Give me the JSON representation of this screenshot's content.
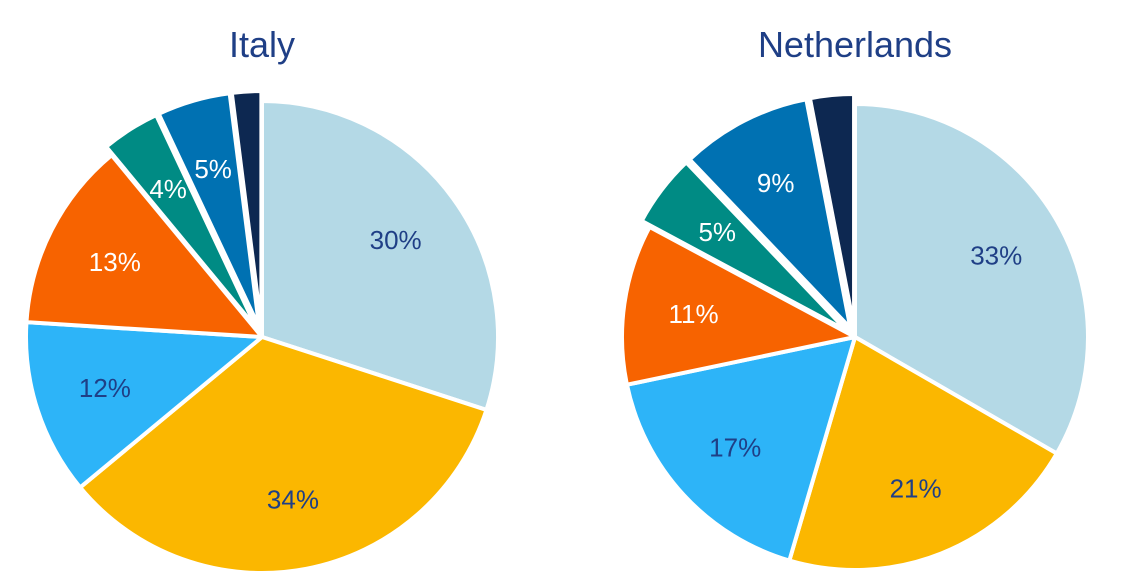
{
  "colors": {
    "light_blue": "#b4d9e6",
    "amber": "#fbb700",
    "sky_blue": "#2db4f8",
    "orange": "#f76300",
    "teal": "#008b84",
    "medium_blue": "#0071b2",
    "navy": "#0d2851",
    "title": "#1f3f86",
    "label_dark": "#1f3f86",
    "label_light": "#ffffff",
    "slice_border": "#ffffff"
  },
  "chart_data": [
    {
      "type": "pie",
      "title": "Italy",
      "start_angle_deg": 0,
      "direction": "clockwise",
      "slices": [
        {
          "value": 30,
          "label": "30%",
          "color": "light_blue",
          "label_color": "label_dark"
        },
        {
          "value": 34,
          "label": "34%",
          "color": "amber",
          "label_color": "label_dark"
        },
        {
          "value": 12,
          "label": "12%",
          "color": "sky_blue",
          "label_color": "label_dark"
        },
        {
          "value": 13,
          "label": "13%",
          "color": "orange",
          "label_color": "label_light"
        },
        {
          "value": 4,
          "label": "4%",
          "color": "teal",
          "label_color": "label_light"
        },
        {
          "value": 5,
          "label": "5%",
          "color": "medium_blue",
          "label_color": "label_light"
        },
        {
          "value": 2,
          "label": "",
          "color": "navy",
          "label_color": "label_light"
        }
      ]
    },
    {
      "type": "pie",
      "title": "Netherlands",
      "start_angle_deg": 0,
      "direction": "clockwise",
      "slices": [
        {
          "value": 33,
          "label": "33%",
          "color": "light_blue",
          "label_color": "label_dark"
        },
        {
          "value": 21,
          "label": "21%",
          "color": "amber",
          "label_color": "label_dark"
        },
        {
          "value": 17,
          "label": "17%",
          "color": "sky_blue",
          "label_color": "label_dark"
        },
        {
          "value": 11,
          "label": "11%",
          "color": "orange",
          "label_color": "label_light"
        },
        {
          "value": 5,
          "label": "5%",
          "color": "teal",
          "label_color": "label_light"
        },
        {
          "value": 9,
          "label": "9%",
          "color": "medium_blue",
          "label_color": "label_light"
        },
        {
          "value": 3,
          "label": "",
          "color": "navy",
          "label_color": "label_light"
        }
      ]
    }
  ]
}
